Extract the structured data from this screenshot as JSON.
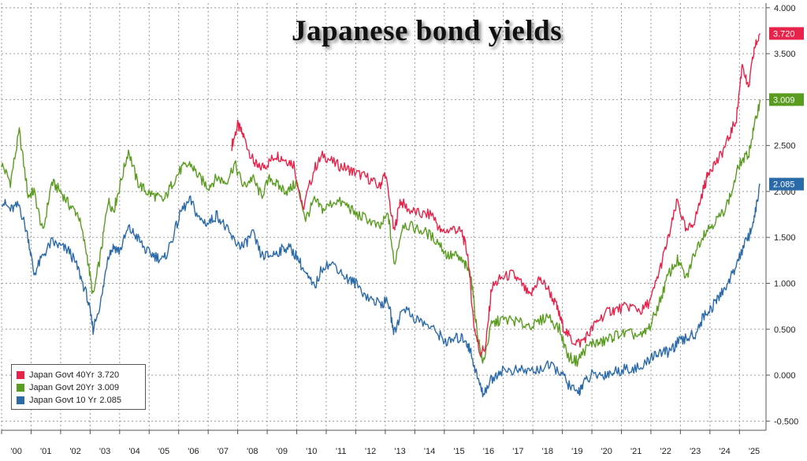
{
  "chart_data": {
    "type": "line",
    "title": "Japanese bond yields",
    "xlabel": "",
    "ylabel": "",
    "x_tick_labels": [
      "'00",
      "'01",
      "'02",
      "'03",
      "'04",
      "'05",
      "'06",
      "'07",
      "'08",
      "'09",
      "'10",
      "'11",
      "'12",
      "'13",
      "'14",
      "'15",
      "'16",
      "'17",
      "'18",
      "'19",
      "'20",
      "'21",
      "'22",
      "'23",
      "'24",
      "'25"
    ],
    "y_tick_labels": [
      "4.000",
      "3.500",
      "3.000",
      "2.500",
      "2.000",
      "1.500",
      "1.000",
      "0.500",
      "0.000",
      "-0.500"
    ],
    "xlim": [
      2000.0,
      2025.9
    ],
    "ylim": [
      -0.6,
      4.05
    ],
    "grid": true,
    "legend_position": "bottom-left",
    "series": [
      {
        "name": "Japan Govt 40Yr",
        "legend_label": "Japan Govt 40Yr",
        "last_value_label": "3.720",
        "color": "#e8234a",
        "x": [
          2007.8,
          2008.0,
          2008.2,
          2008.5,
          2008.7,
          2009.0,
          2009.3,
          2009.6,
          2009.9,
          2010.2,
          2010.6,
          2010.9,
          2011.3,
          2011.7,
          2012.0,
          2012.4,
          2012.8,
          2013.0,
          2013.3,
          2013.5,
          2013.8,
          2014.2,
          2014.6,
          2014.9,
          2015.3,
          2015.6,
          2015.8,
          2016.0,
          2016.2,
          2016.4,
          2016.6,
          2016.9,
          2017.3,
          2017.6,
          2017.9,
          2018.2,
          2018.5,
          2018.8,
          2019.0,
          2019.3,
          2019.6,
          2019.9,
          2020.2,
          2020.6,
          2020.9,
          2021.3,
          2021.7,
          2022.0,
          2022.3,
          2022.6,
          2022.9,
          2023.2,
          2023.5,
          2023.8,
          2024.0,
          2024.3,
          2024.6,
          2024.9,
          2025.1,
          2025.3,
          2025.5,
          2025.7
        ],
        "values": [
          2.5,
          2.72,
          2.6,
          2.35,
          2.25,
          2.3,
          2.4,
          2.35,
          2.3,
          1.8,
          2.25,
          2.4,
          2.3,
          2.25,
          2.2,
          2.15,
          2.05,
          2.2,
          1.55,
          1.9,
          1.8,
          1.75,
          1.75,
          1.55,
          1.6,
          1.55,
          1.3,
          0.55,
          0.25,
          0.3,
          0.95,
          1.05,
          1.1,
          1.0,
          0.85,
          1.05,
          0.95,
          0.75,
          0.55,
          0.38,
          0.35,
          0.45,
          0.6,
          0.7,
          0.72,
          0.75,
          0.7,
          0.82,
          1.15,
          1.5,
          1.9,
          1.55,
          1.7,
          2.05,
          2.25,
          2.35,
          2.55,
          2.8,
          3.4,
          3.1,
          3.55,
          3.72
        ]
      },
      {
        "name": "Japan Govt 20Yr",
        "legend_label": "Japan Govt 20Yr",
        "last_value_label": "3.009",
        "color": "#5a9c1f",
        "x": [
          2000.0,
          2000.3,
          2000.6,
          2000.9,
          2001.1,
          2001.4,
          2001.7,
          2002.0,
          2002.3,
          2002.6,
          2002.9,
          2003.1,
          2003.4,
          2003.6,
          2003.8,
          2004.0,
          2004.3,
          2004.6,
          2004.9,
          2005.2,
          2005.5,
          2005.8,
          2006.1,
          2006.4,
          2006.7,
          2007.0,
          2007.3,
          2007.6,
          2007.9,
          2008.2,
          2008.5,
          2008.8,
          2009.1,
          2009.4,
          2009.7,
          2010.0,
          2010.3,
          2010.6,
          2010.9,
          2011.3,
          2011.7,
          2012.0,
          2012.4,
          2012.8,
          2013.1,
          2013.3,
          2013.6,
          2014.0,
          2014.4,
          2014.8,
          2015.1,
          2015.4,
          2015.7,
          2015.9,
          2016.1,
          2016.3,
          2016.6,
          2016.9,
          2017.3,
          2017.7,
          2018.1,
          2018.5,
          2018.9,
          2019.2,
          2019.5,
          2019.7,
          2020.0,
          2020.3,
          2020.6,
          2020.9,
          2021.3,
          2021.7,
          2022.0,
          2022.3,
          2022.6,
          2022.9,
          2023.2,
          2023.5,
          2023.8,
          2024.1,
          2024.4,
          2024.7,
          2025.0,
          2025.3,
          2025.5,
          2025.7
        ],
        "values": [
          2.3,
          2.1,
          2.65,
          1.95,
          2.0,
          1.55,
          2.1,
          2.0,
          1.85,
          1.75,
          1.3,
          0.85,
          1.4,
          1.9,
          1.8,
          2.05,
          2.45,
          2.1,
          2.0,
          1.95,
          1.9,
          2.1,
          2.25,
          2.3,
          2.15,
          2.05,
          2.15,
          2.1,
          2.3,
          2.05,
          2.15,
          1.95,
          2.15,
          2.05,
          2.0,
          2.1,
          1.7,
          1.9,
          1.8,
          1.9,
          1.85,
          1.75,
          1.7,
          1.6,
          1.75,
          1.2,
          1.65,
          1.6,
          1.55,
          1.45,
          1.3,
          1.3,
          1.2,
          1.1,
          0.5,
          0.12,
          0.55,
          0.6,
          0.6,
          0.55,
          0.55,
          0.65,
          0.5,
          0.2,
          0.15,
          0.25,
          0.35,
          0.35,
          0.4,
          0.45,
          0.45,
          0.42,
          0.55,
          0.8,
          1.1,
          1.25,
          1.05,
          1.35,
          1.55,
          1.65,
          1.75,
          1.95,
          2.3,
          2.4,
          2.7,
          3.0
        ]
      },
      {
        "name": "Japan Govt 10 Yr",
        "legend_label": "Japan Govt 10 Yr",
        "last_value_label": "2.085",
        "color": "#2a6aa8",
        "x": [
          2000.0,
          2000.3,
          2000.6,
          2000.9,
          2001.1,
          2001.4,
          2001.7,
          2002.0,
          2002.3,
          2002.6,
          2002.9,
          2003.1,
          2003.4,
          2003.6,
          2003.8,
          2004.0,
          2004.3,
          2004.6,
          2004.9,
          2005.2,
          2005.5,
          2005.8,
          2006.1,
          2006.4,
          2006.7,
          2007.0,
          2007.3,
          2007.6,
          2007.9,
          2008.2,
          2008.5,
          2008.8,
          2009.1,
          2009.4,
          2009.7,
          2010.0,
          2010.3,
          2010.6,
          2010.9,
          2011.3,
          2011.7,
          2012.0,
          2012.4,
          2012.8,
          2013.1,
          2013.3,
          2013.6,
          2014.0,
          2014.4,
          2014.8,
          2015.1,
          2015.4,
          2015.7,
          2015.9,
          2016.1,
          2016.3,
          2016.6,
          2016.9,
          2017.3,
          2017.7,
          2018.1,
          2018.5,
          2018.9,
          2019.2,
          2019.5,
          2019.7,
          2020.0,
          2020.3,
          2020.6,
          2020.9,
          2021.3,
          2021.7,
          2022.0,
          2022.3,
          2022.6,
          2022.9,
          2023.2,
          2023.5,
          2023.8,
          2024.1,
          2024.4,
          2024.7,
          2025.0,
          2025.3,
          2025.5,
          2025.7
        ],
        "values": [
          1.9,
          1.8,
          1.85,
          1.5,
          1.1,
          1.3,
          1.45,
          1.4,
          1.35,
          1.15,
          0.85,
          0.5,
          0.85,
          1.3,
          1.4,
          1.35,
          1.6,
          1.5,
          1.35,
          1.3,
          1.25,
          1.5,
          1.8,
          1.9,
          1.7,
          1.65,
          1.75,
          1.6,
          1.45,
          1.4,
          1.55,
          1.3,
          1.3,
          1.35,
          1.4,
          1.3,
          1.1,
          0.95,
          1.2,
          1.2,
          1.05,
          1.0,
          0.85,
          0.78,
          0.8,
          0.45,
          0.75,
          0.62,
          0.55,
          0.45,
          0.35,
          0.4,
          0.4,
          0.25,
          0.0,
          -0.2,
          -0.05,
          0.05,
          0.05,
          0.05,
          0.05,
          0.1,
          0.05,
          -0.1,
          -0.2,
          -0.1,
          0.0,
          0.0,
          0.02,
          0.05,
          0.08,
          0.07,
          0.2,
          0.25,
          0.25,
          0.35,
          0.4,
          0.45,
          0.65,
          0.75,
          0.9,
          1.05,
          1.3,
          1.5,
          1.7,
          2.08
        ]
      }
    ]
  }
}
